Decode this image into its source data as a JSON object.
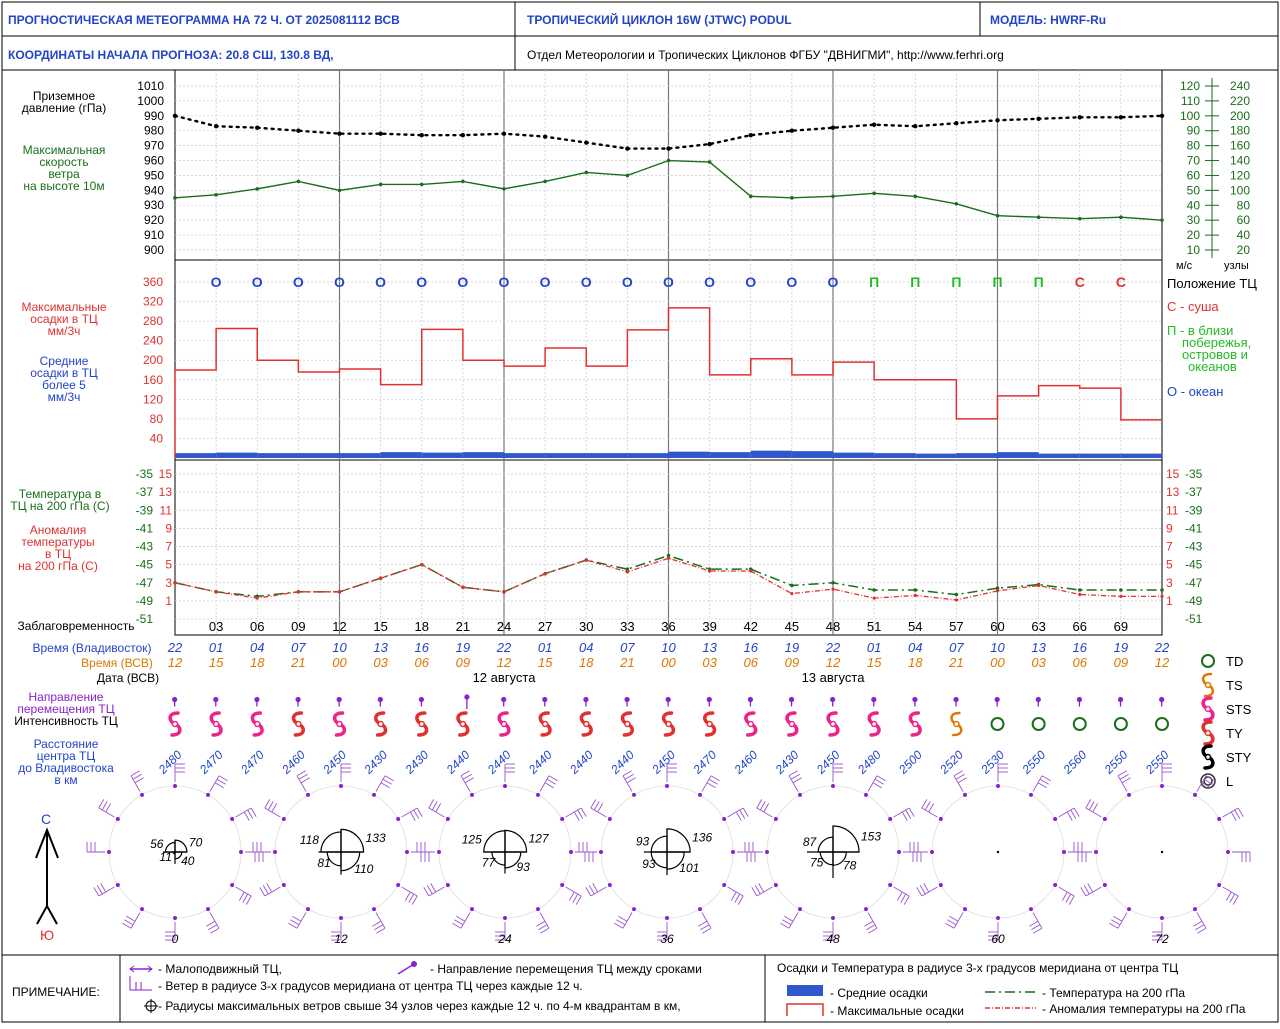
{
  "header": {
    "title": "ПРОГНОСТИЧЕСКАЯ МЕТЕОГРАММА НА 72 Ч. ОТ 2025081112 ВСВ",
    "cyclone": "ТРОПИЧЕСКИЙ ЦИКЛОН  16W  (JTWC)  PODUL",
    "model": "МОДЕЛЬ:   HWRF-Ru",
    "coords": "КООРДИНАТЫ НАЧАЛА ПРОГНОЗА:  20.8  СШ,   130.8  ВД,",
    "org": "Отдел Метеорологии и Тропических Циклонов ФГБУ \"ДВНИГМИ\",  http://www.ferhri.org"
  },
  "labels": {
    "pressure": [
      "Приземное",
      "давление (гПа)"
    ],
    "wind": [
      "Максимальная",
      "скорость",
      "ветра",
      "на высоте 10м"
    ],
    "precip_max": [
      "Максимальные",
      "осадки в ТЦ",
      "мм/3ч"
    ],
    "precip_avg": [
      "Средние",
      "осадки в ТЦ",
      "более 5",
      "мм/3ч"
    ],
    "position_title": "Положение ТЦ",
    "pos_legend_land": "С - суша",
    "pos_legend_coast": [
      "П - в близи",
      "побережья,",
      "островов и",
      "океанов"
    ],
    "pos_legend_ocean": "О - океан",
    "temp": [
      "Температура в",
      "ТЦ на 200 гПа (С)"
    ],
    "anom": [
      "Аномалия",
      "температуры",
      "в ТЦ",
      "на 200 гПа (С)"
    ],
    "lead": "Заблаговременность",
    "time_vlad": "Время (Владивосток)",
    "time_utc": "Время (ВСВ)",
    "date": "Дата (ВСВ)",
    "date1": "12 августа",
    "date2": "13 августа",
    "direction": [
      "Направление",
      "перемещения ТЦ"
    ],
    "intensity": "Интенсивность ТЦ",
    "distance": [
      "Расстояние",
      "центра ТЦ",
      "до Владивостока",
      "в км"
    ],
    "ms": "м/с",
    "knots": "узлы",
    "north": "С",
    "south": "Ю"
  },
  "intensity_legend": [
    "TD",
    "TS",
    "STS",
    "TY",
    "STY",
    "L"
  ],
  "footer": {
    "note": "ПРИМЕЧАНИЕ:",
    "slow": "- Малоподвижный ТЦ,",
    "dir": "- Направление перемещения ТЦ между сроками",
    "wind3": "- Ветер в радиусе 3-х градусов меридиана от центра ТЦ через каждые 12 ч.",
    "radii": "- Радиусы максимальных ветров свыше 34 узлов через каждые 12 ч. по 4-м квадрантам в км,",
    "right_title": "Осадки и Температура в радиусе 3-х градусов меридиана от центра ТЦ",
    "avg": "- Средние осадки",
    "max": "- Максимальные осадки",
    "temp": "- Температура на 200 гПа",
    "anom": "- Аномалия температуры на 200 гПа"
  },
  "colors": {
    "blue": "#2244cc",
    "green": "#1a6e1a",
    "red": "#e23030",
    "brightgreen": "#22bb22",
    "purple": "#8822cc",
    "orange": "#dd7700",
    "magenta": "#ee2288",
    "avgbar": "#3058cc"
  },
  "chart_data": [
    {
      "type": "line",
      "name": "pressure-wind",
      "x": [
        0,
        3,
        6,
        9,
        12,
        15,
        18,
        21,
        24,
        27,
        30,
        33,
        36,
        39,
        42,
        45,
        48,
        51,
        54,
        57,
        60,
        63,
        66,
        69,
        72
      ],
      "pressure_ticks": [
        1010,
        1000,
        990,
        980,
        970,
        960,
        950,
        940,
        930,
        920,
        910,
        900
      ],
      "ms_ticks": [
        120,
        110,
        100,
        90,
        80,
        70,
        60,
        50,
        40,
        30,
        20,
        10
      ],
      "knot_ticks": [
        240,
        220,
        200,
        180,
        160,
        140,
        120,
        100,
        80,
        60,
        40,
        20
      ],
      "pressure": [
        990,
        983,
        982,
        980,
        978,
        978,
        977,
        977,
        978,
        976,
        972,
        968,
        968,
        971,
        977,
        980,
        982,
        984,
        983,
        985,
        987,
        988,
        989,
        989,
        990
      ],
      "wind_ms": [
        45,
        47,
        51,
        56,
        50,
        54,
        54,
        56,
        51,
        56,
        62,
        60,
        70,
        69,
        46,
        45,
        46,
        48,
        46,
        41,
        33,
        32,
        31,
        32,
        30
      ]
    },
    {
      "type": "bar",
      "name": "precipitation",
      "ylim": [
        0,
        380
      ],
      "y_ticks": [
        360,
        320,
        280,
        240,
        200,
        160,
        120,
        80,
        40
      ],
      "max": [
        180,
        265,
        200,
        176,
        182,
        150,
        263,
        200,
        188,
        225,
        188,
        262,
        307,
        170,
        203,
        170,
        196,
        160,
        160,
        80,
        127,
        148,
        143,
        78
      ],
      "avg": [
        10,
        11,
        10,
        10,
        10,
        12,
        11,
        12,
        10,
        10,
        10,
        10,
        13,
        12,
        15,
        14,
        11,
        10,
        9,
        10,
        12,
        9,
        9,
        9
      ],
      "position": [
        "О",
        "О",
        "О",
        "О",
        "О",
        "О",
        "О",
        "О",
        "О",
        "О",
        "О",
        "О",
        "О",
        "О",
        "О",
        "О",
        "П",
        "П",
        "П",
        "П",
        "П",
        "С",
        "С"
      ]
    },
    {
      "type": "line",
      "name": "temperature",
      "temp_ticks": [
        -35,
        -37,
        -39,
        -41,
        -43,
        -45,
        -47,
        -49,
        -51
      ],
      "anom_ticks": [
        15,
        13,
        11,
        9,
        7,
        5,
        3,
        1
      ],
      "temp200": [
        -47,
        -48,
        -48.5,
        -48,
        -48,
        -46.5,
        -45,
        -47.5,
        -48,
        -46,
        -44.5,
        -45.5,
        -44,
        -45.5,
        -45.5,
        -47.3,
        -47,
        -47.8,
        -47.8,
        -48.3,
        -47.6,
        -47.2,
        -47.8,
        -47.8,
        -47.8
      ],
      "anom200": [
        3,
        2,
        1.3,
        2,
        2,
        3.5,
        5,
        2.5,
        2,
        4,
        5.5,
        4.2,
        5.7,
        4.3,
        4.3,
        1.8,
        2.3,
        1.3,
        1.6,
        1.1,
        2.1,
        2.7,
        1.7,
        1.5,
        1.5
      ]
    }
  ],
  "time_axis": {
    "lead": [
      "03",
      "06",
      "09",
      "12",
      "15",
      "18",
      "21",
      "24",
      "27",
      "30",
      "33",
      "36",
      "39",
      "42",
      "45",
      "48",
      "51",
      "54",
      "57",
      "60",
      "63",
      "66",
      "69"
    ],
    "vlad": [
      "22",
      "01",
      "04",
      "07",
      "10",
      "13",
      "16",
      "19",
      "22",
      "01",
      "04",
      "07",
      "10",
      "13",
      "16",
      "19",
      "22",
      "01",
      "04",
      "07",
      "10",
      "13",
      "16",
      "19",
      "22"
    ],
    "utc": [
      "12",
      "15",
      "18",
      "21",
      "00",
      "03",
      "06",
      "09",
      "12",
      "15",
      "18",
      "21",
      "00",
      "03",
      "06",
      "09",
      "12",
      "15",
      "18",
      "21",
      "00",
      "03",
      "06",
      "09",
      "12"
    ]
  },
  "track": {
    "intensity": [
      "STS",
      "STS",
      "STS",
      "TY",
      "STS",
      "TY",
      "TY",
      "TY",
      "STS",
      "TY",
      "TY",
      "TY",
      "TY",
      "TY",
      "STS",
      "STS",
      "STS",
      "STS",
      "STS",
      "TS",
      "TD",
      "TD",
      "TD",
      "TD",
      "TD"
    ],
    "distance": [
      "2480",
      "2470",
      "2470",
      "2460",
      "2450",
      "2430",
      "2430",
      "2440",
      "2440",
      "2440",
      "2440",
      "2440",
      "2450",
      "2470",
      "2460",
      "2430",
      "2450",
      "2480",
      "2500",
      "2520",
      "2530",
      "2550",
      "2560",
      "2550",
      "2550"
    ],
    "direction_deg": [
      300,
      300,
      300,
      300,
      300,
      300,
      300,
      0,
      300,
      300,
      300,
      300,
      300,
      300,
      300,
      300,
      300,
      300,
      300,
      300,
      300,
      300,
      300,
      300,
      300
    ]
  },
  "wind_radii": [
    {
      "lead": "0",
      "ne": "70",
      "se": "40",
      "sw": "11",
      "nw": "56"
    },
    {
      "lead": "12",
      "ne": "133",
      "se": "110",
      "sw": "81",
      "nw": "118"
    },
    {
      "lead": "24",
      "ne": "127",
      "se": "93",
      "sw": "77",
      "nw": "125"
    },
    {
      "lead": "36",
      "ne": "136",
      "se": "101",
      "sw": "93",
      "nw": "93"
    },
    {
      "lead": "48",
      "ne": "153",
      "se": "78",
      "sw": "75",
      "nw": "87"
    },
    {
      "lead": "60",
      "ne": "",
      "se": "",
      "sw": "",
      "nw": ""
    },
    {
      "lead": "72",
      "ne": "",
      "se": "",
      "sw": "",
      "nw": ""
    }
  ]
}
